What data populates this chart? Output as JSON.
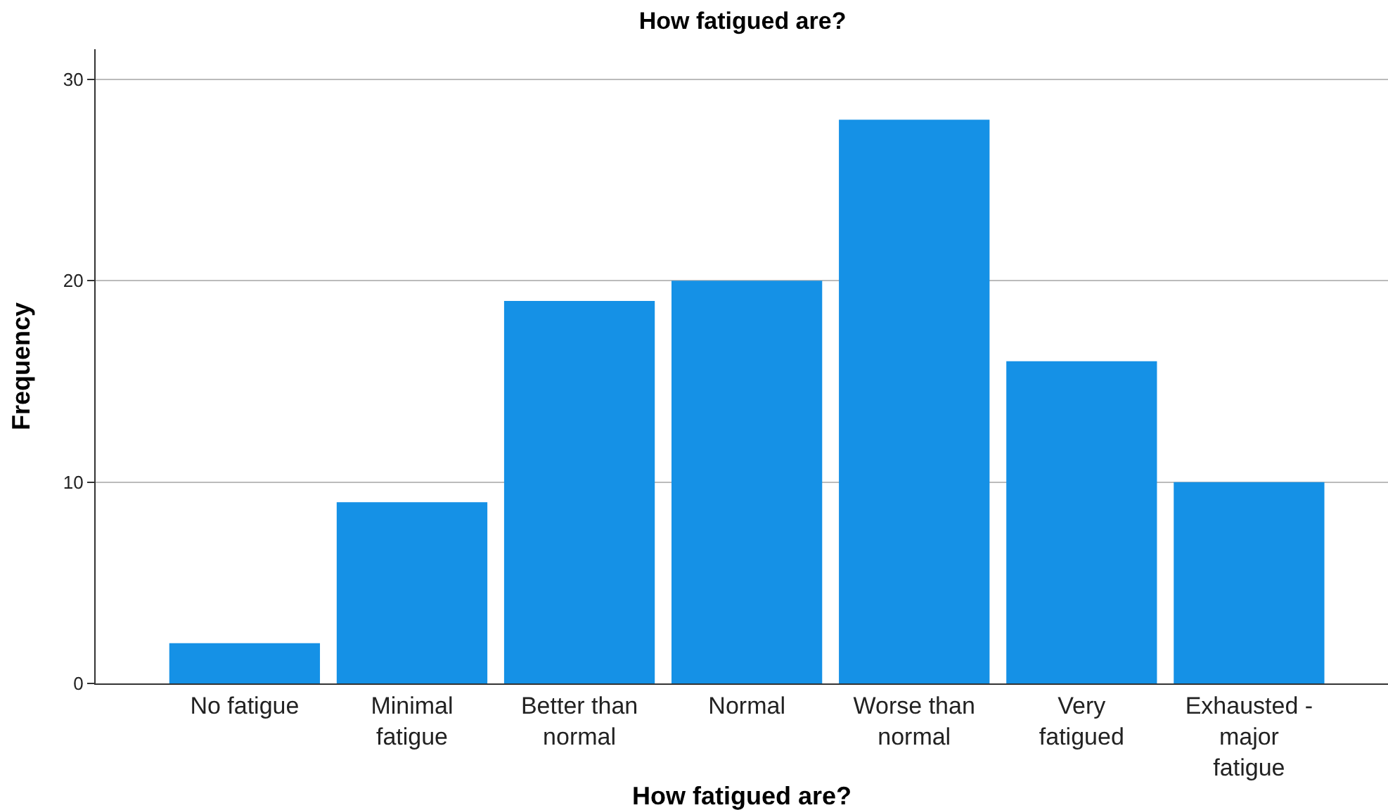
{
  "chart_data": {
    "type": "bar",
    "title": "How fatigued are?",
    "xlabel": "How fatigued are?",
    "ylabel": "Frequency",
    "categories": [
      "No fatigue",
      "Minimal fatigue",
      "Better than normal",
      "Normal",
      "Worse than normal",
      "Very fatigued",
      "Exhausted - major fatigue"
    ],
    "values": [
      2,
      9,
      19,
      20,
      28,
      16,
      10
    ],
    "color": "#1591e6",
    "ylim": [
      0,
      31.5
    ],
    "yticks": [
      0,
      10,
      20,
      30
    ],
    "grid": "y"
  }
}
